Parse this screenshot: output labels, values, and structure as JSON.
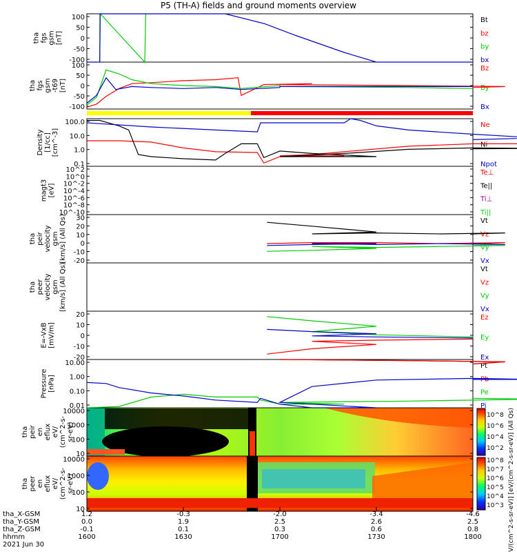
{
  "chart_data": [
    {
      "type": "line",
      "title": "P5 (TH-A) fields and ground moments overview",
      "panel": "fgs",
      "ylabel": "tha\nfgs\ngsm\n[nT]",
      "yticks": [
        "100",
        "50",
        "0",
        "-50",
        "-100"
      ],
      "ylim": [
        -100,
        100
      ],
      "series": [
        {
          "name": "Bt",
          "color": "#000000",
          "x": [],
          "values": []
        },
        {
          "name": "bz",
          "color": "#ff0000",
          "x": [],
          "values": []
        },
        {
          "name": "by",
          "color": "#00cc00",
          "x": [
            1604,
            1604.2,
            1618,
            1618.3
          ],
          "values": [
            -100,
            100,
            -100,
            100
          ]
        },
        {
          "name": "bx",
          "color": "#0000cc",
          "x": [
            1600,
            1604.0,
            1604.1,
            1643,
            1655,
            1665,
            1680,
            1690,
            1800
          ],
          "values": [
            -100,
            -100,
            100,
            100,
            60,
            10,
            -60,
            -100,
            -100
          ]
        }
      ]
    },
    {
      "type": "line",
      "panel": "fgs-detrended",
      "ylabel": "tha\nfgs\ngsm\n-t69\n[nT]",
      "yticks": [
        "100",
        "50",
        "0",
        "-50",
        "-100"
      ],
      "ylim": [
        -120,
        120
      ],
      "series": [
        {
          "name": "Bz",
          "color": "#ff0000",
          "x": [
            1600,
            1603,
            1606,
            1610,
            1614,
            1620,
            1630,
            1640,
            1647,
            1648,
            1655,
            1670,
            1700,
            1740,
            1770,
            1800
          ],
          "values": [
            -110,
            -95,
            -55,
            -15,
            10,
            15,
            25,
            30,
            40,
            -50,
            5,
            10,
            5,
            0,
            -5,
            -10
          ]
        },
        {
          "name": "By",
          "color": "#00cc00",
          "x": [
            1600,
            1603,
            1606,
            1610,
            1614,
            1620,
            1630,
            1640,
            1648,
            1660,
            1700,
            1740,
            1800
          ],
          "values": [
            -100,
            -60,
            80,
            60,
            30,
            10,
            0,
            -5,
            -15,
            0,
            -5,
            -10,
            -15
          ]
        },
        {
          "name": "Bx",
          "color": "#0000cc",
          "x": [
            1600,
            1603,
            1606,
            1609,
            1614,
            1620,
            1630,
            1640,
            1648,
            1660,
            1700,
            1740,
            1800
          ],
          "values": [
            -90,
            -50,
            40,
            -20,
            -5,
            -10,
            -15,
            -10,
            -20,
            -10,
            -5,
            -5,
            -5
          ]
        }
      ]
    },
    {
      "type": "line",
      "panel": "mode bar",
      "ylabel": "",
      "series": [
        {
          "name": "yellow",
          "color": "#ffff00",
          "x": [
            1600,
            1653
          ],
          "values": [
            1,
            1
          ]
        },
        {
          "name": "red",
          "color": "#ff0000",
          "x": [
            1653,
            1800
          ],
          "values": [
            1,
            1
          ]
        }
      ]
    },
    {
      "type": "line",
      "panel": "density",
      "ylabel": "Density\n[1/cc]\n[cm^-3]",
      "yticks": [
        "100.0",
        "10.0",
        "1.0",
        "0.1"
      ],
      "log": true,
      "ylim": [
        0.07,
        200
      ],
      "series": [
        {
          "name": "Ne",
          "color": "#ff0000",
          "x": [
            1600,
            1610,
            1620,
            1630,
            1640,
            1653,
            1655,
            1660,
            1680,
            1700,
            1710,
            1720,
            1740,
            1760,
            1780,
            1800
          ],
          "values": [
            5,
            5,
            4,
            1.5,
            0.8,
            0.7,
            0.12,
            0.35,
            0.4,
            0.4,
            0.5,
            0.8,
            2,
            3,
            3,
            3
          ]
        },
        {
          "name": "Ni",
          "color": "#000000",
          "x": [
            1600,
            1604,
            1610,
            1613,
            1616,
            1620,
            1630,
            1640,
            1643,
            1648,
            1653,
            1655,
            1660,
            1670,
            1690,
            1700,
            1720,
            1740,
            1760,
            1780,
            1800
          ],
          "values": [
            150,
            150,
            60,
            30,
            0.5,
            0.35,
            0.25,
            0.2,
            0.6,
            3,
            3,
            0.3,
            0.9,
            0.6,
            0.35,
            0.35,
            0.6,
            1.2,
            1.5,
            1.4,
            1.3
          ]
        },
        {
          "name": "Npot",
          "color": "#0000cc",
          "x": [
            1600,
            1620,
            1640,
            1653,
            1654,
            1700,
            1720,
            1722,
            1725,
            1730,
            1740,
            1760,
            1780,
            1800
          ],
          "values": [
            100,
            50,
            30,
            22,
            100,
            100,
            100,
            200,
            150,
            60,
            30,
            15,
            8,
            6
          ]
        }
      ]
    },
    {
      "type": "line",
      "panel": "temperature",
      "ylabel": "magt3\n[eV]",
      "yticks": [
        "10^2",
        "10^0",
        "10^-2",
        "10^-4",
        "10^-6",
        "10^-8",
        "10^-10"
      ],
      "log": true,
      "series": [
        {
          "name": "Te⊥",
          "color": "#ff0000",
          "x": [],
          "values": []
        },
        {
          "name": "Te||",
          "color": "#000000",
          "x": [],
          "values": []
        },
        {
          "name": "Ti⊥",
          "color": "#990099",
          "x": [],
          "values": []
        },
        {
          "name": "Ti||",
          "color": "#00cc00",
          "x": [],
          "values": []
        }
      ]
    },
    {
      "type": "line",
      "panel": "peir velocity",
      "ylabel": "tha\npeir\nvelocity\ngsm\n[km/s] (All Qs)",
      "yticks": [
        "30",
        "20",
        "10",
        "0",
        "-10",
        "-20"
      ],
      "ylim": [
        -20,
        30
      ],
      "series": [
        {
          "name": "Vt",
          "color": "#000000",
          "x": [
            1656,
            1670,
            1690,
            1710,
            1730,
            1750,
            1770,
            1800
          ],
          "values": [
            22,
            18,
            12,
            10,
            11,
            10,
            11,
            10
          ]
        },
        {
          "name": "Vz",
          "color": "#ff0000",
          "x": [
            1656,
            1670,
            1690,
            1710,
            1730,
            1750,
            1770,
            1800
          ],
          "values": [
            0,
            1,
            1,
            0,
            1,
            0,
            1,
            0
          ]
        },
        {
          "name": "Vy",
          "color": "#00cc00",
          "x": [
            1656,
            1670,
            1690,
            1710,
            1730,
            1750,
            1770,
            1800
          ],
          "values": [
            -8,
            -7,
            -5,
            -3,
            -4,
            -3,
            -2,
            -2
          ]
        },
        {
          "name": "Vx",
          "color": "#0000cc",
          "x": [
            1656,
            1670,
            1690,
            1710,
            1730,
            1750,
            1770,
            1800
          ],
          "values": [
            -2,
            -1,
            0,
            0,
            -1,
            0,
            -1,
            0
          ]
        }
      ]
    },
    {
      "type": "line",
      "panel": "peer velocity",
      "ylabel": "tha\npeer\nvelocity\ngsm\n[km/s] (All Qs)",
      "yticks": [],
      "series": [
        {
          "name": "Vt",
          "color": "#000000",
          "x": [],
          "values": []
        },
        {
          "name": "Vz",
          "color": "#ff0000",
          "x": [],
          "values": []
        },
        {
          "name": "Vy",
          "color": "#00cc00",
          "x": [],
          "values": []
        },
        {
          "name": "Vx",
          "color": "#0000cc",
          "x": [],
          "values": []
        }
      ]
    },
    {
      "type": "line",
      "panel": "efield",
      "ylabel": "E=-VxB\n[mV/m]",
      "yticks": [
        "20",
        "10",
        "0",
        "-10",
        "-20"
      ],
      "ylim": [
        -20,
        25
      ],
      "series": [
        {
          "name": "Ez",
          "color": "#ff0000",
          "x": [
            1656,
            1670,
            1690,
            1710,
            1730,
            1760,
            1800
          ],
          "values": [
            -15,
            -10,
            -6,
            -3,
            -2,
            -1,
            -1
          ]
        },
        {
          "name": "Ey",
          "color": "#00cc00",
          "x": [
            1656,
            1670,
            1690,
            1710,
            1730,
            1760,
            1800
          ],
          "values": [
            20,
            16,
            11,
            6,
            3,
            1,
            0
          ]
        },
        {
          "name": "Ex",
          "color": "#0000cc",
          "x": [
            1656,
            1670,
            1690,
            1710,
            1730,
            1760,
            1800
          ],
          "values": [
            8,
            6,
            4,
            2,
            1,
            0,
            0
          ]
        }
      ]
    },
    {
      "type": "line",
      "panel": "pressure",
      "ylabel": "Pressure\n[nPa]",
      "yticks": [
        "10.00",
        "1.00",
        "0.10",
        "0.01"
      ],
      "log": true,
      "ylim": [
        0.008,
        30
      ],
      "series": [
        {
          "name": "Pt",
          "color": "#000000",
          "x": [
            1700,
            1740,
            1770,
            1800
          ],
          "values": [
            30,
            25,
            20,
            14
          ]
        },
        {
          "name": "Pb",
          "color": "#ff0000",
          "x": [
            1700,
            1740,
            1770,
            1800
          ],
          "values": [
            30,
            25,
            20,
            14
          ]
        },
        {
          "name": "Pe",
          "color": "#00cc00",
          "x": [
            1600,
            1610,
            1620,
            1630,
            1640,
            1653,
            1654,
            1660,
            1680,
            1700,
            1740,
            1780,
            1800
          ],
          "values": [
            0.008,
            0.01,
            0.05,
            0.08,
            0.05,
            0.05,
            0.03,
            0.015,
            0.015,
            0.02,
            0.025,
            0.035,
            0.04
          ]
        },
        {
          "name": "Pi",
          "color": "#0000cc",
          "x": [
            1600,
            1606,
            1610,
            1620,
            1630,
            1640,
            1653,
            1654,
            1660,
            1670,
            1690,
            1700,
            1710,
            1730,
            1760,
            1780,
            1800
          ],
          "values": [
            0.6,
            0.5,
            0.25,
            0.1,
            0.06,
            0.03,
            0.02,
            0.04,
            0.015,
            0.008,
            0.008,
            0.02,
            0.3,
            0.9,
            1.2,
            1.0,
            1.0
          ]
        }
      ]
    },
    {
      "type": "heatmap",
      "panel": "peir energy flux",
      "ylabel": "tha\npeir\nen\neflux\neV/\n(cm^2-s-\nsr-eV)",
      "yticks": [
        "10000",
        "1000",
        "100",
        "10"
      ]
    },
    {
      "type": "heatmap",
      "panel": "peer energy flux",
      "ylabel": "tha\npeer\nen\neflux\neV/\n(cm^2-s-\nsr-eV)",
      "yticks": [
        "10000",
        "1000",
        "100",
        "10"
      ]
    }
  ],
  "colorbar": {
    "ticks": [
      "10^8",
      "10^6",
      "10^4",
      "10^2"
    ],
    "ticks2": [
      "10^8",
      "10^7",
      "10^6",
      "10^5",
      "10^4",
      "10^3"
    ],
    "label": "[eV/(cm^2-s-sr-eV)] [eV/(cm^2-s-sr-eV)] (All Qs)"
  },
  "xaxis": {
    "rows": [
      {
        "label": "tha_X-GSM",
        "values": [
          "1.2",
          "-0.3",
          "-2.0",
          "-3.4",
          "-4.6"
        ]
      },
      {
        "label": "tha_Y-GSM",
        "values": [
          "0.0",
          "1.9",
          "2.5",
          "2.6",
          "2.5"
        ]
      },
      {
        "label": "tha_Z-GSM",
        "values": [
          "-0.1",
          "0.1",
          "0.3",
          "0.6",
          "0.8"
        ]
      },
      {
        "label": "hhmm",
        "values": [
          "1600",
          "1630",
          "1700",
          "1730",
          "1800"
        ]
      }
    ],
    "date": "2021 Jun 30"
  }
}
